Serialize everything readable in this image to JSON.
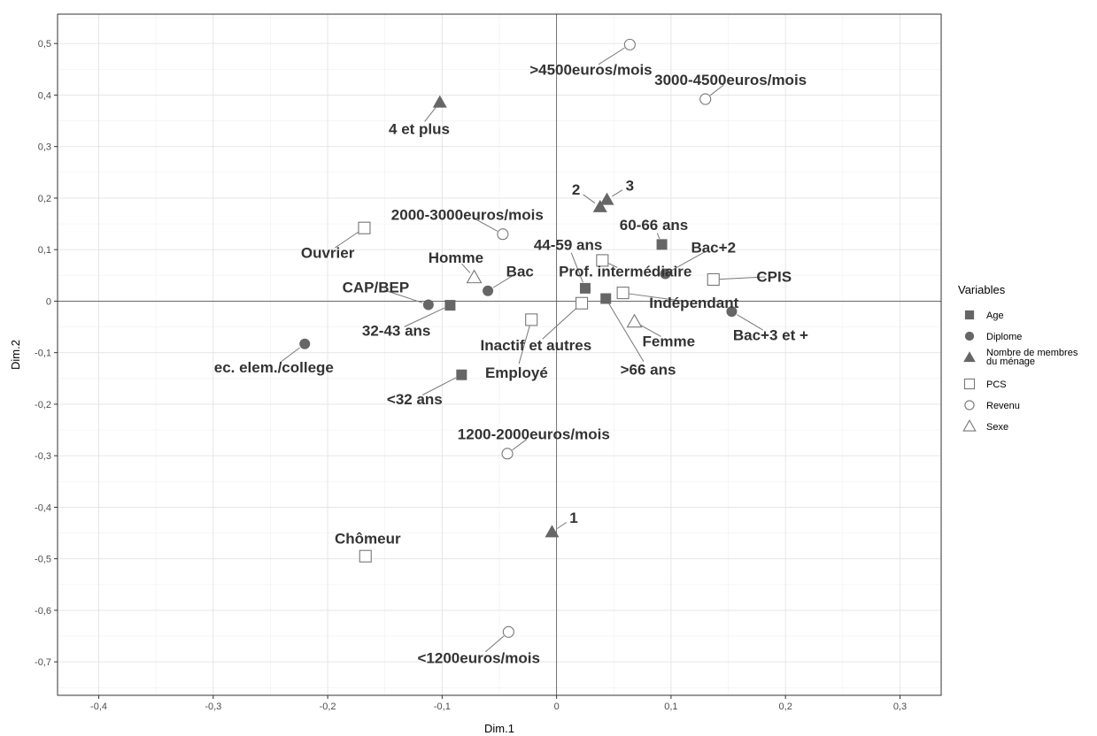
{
  "chart_data": {
    "type": "scatter",
    "xlabel": "Dim.1",
    "ylabel": "Dim.2",
    "xlim": [
      -0.436,
      0.336
    ],
    "ylim": [
      -0.765,
      0.557
    ],
    "x_ticks": [
      -0.4,
      -0.3,
      -0.2,
      -0.1,
      0,
      0.1,
      0.2,
      0.3
    ],
    "y_ticks": [
      -0.7,
      -0.6,
      -0.5,
      -0.4,
      -0.3,
      -0.2,
      -0.1,
      0,
      0.1,
      0.2,
      0.3,
      0.4,
      0.5
    ],
    "x_tick_labels": [
      "-0,4",
      "-0,3",
      "-0,2",
      "-0,1",
      "0",
      "0,1",
      "0,2",
      "0,3"
    ],
    "y_tick_labels": [
      "-0,7",
      "-0,6",
      "-0,5",
      "-0,4",
      "-0,3",
      "-0,2",
      "-0,1",
      "0",
      "0,1",
      "0,2",
      "0,3",
      "0,4",
      "0,5"
    ],
    "grid": true,
    "reference_lines": {
      "x": 0,
      "y": 0
    },
    "legend": {
      "title": "Variables",
      "position": "right",
      "entries": [
        {
          "name": "Age",
          "shape": "square-filled"
        },
        {
          "name": "Diplome",
          "shape": "circle-filled"
        },
        {
          "name": "Nombre de membres du ménage",
          "shape": "triangle-filled",
          "lines": [
            "Nombre de membres",
            "du ménage"
          ]
        },
        {
          "name": "PCS",
          "shape": "square-open"
        },
        {
          "name": "Revenu",
          "shape": "circle-open"
        },
        {
          "name": "Sexe",
          "shape": "triangle-open"
        }
      ]
    },
    "series": [
      {
        "name": "Age",
        "shape": "square-filled",
        "points": [
          {
            "label": "60-66 ans",
            "x": 0.092,
            "y": 0.11,
            "lx": 0.085,
            "ly": 0.148
          },
          {
            "label": "44-59 ans",
            "x": 0.025,
            "y": 0.025,
            "lx": 0.01,
            "ly": 0.11
          },
          {
            "label": ">66 ans",
            "x": 0.043,
            "y": 0.005,
            "lx": 0.08,
            "ly": -0.132
          },
          {
            "label": "32-43 ans",
            "x": -0.093,
            "y": -0.008,
            "lx": -0.14,
            "ly": -0.057
          },
          {
            "label": "<32 ans",
            "x": -0.083,
            "y": -0.143,
            "lx": -0.124,
            "ly": -0.19
          }
        ]
      },
      {
        "name": "Diplome",
        "shape": "circle-filled",
        "points": [
          {
            "label": "Bac+2",
            "x": 0.095,
            "y": 0.053,
            "lx": 0.137,
            "ly": 0.105
          },
          {
            "label": "Bac",
            "x": -0.06,
            "y": 0.02,
            "lx": -0.032,
            "ly": 0.058
          },
          {
            "label": "CAP/BEP",
            "x": -0.112,
            "y": -0.007,
            "lx": -0.158,
            "ly": 0.027
          },
          {
            "label": "Bac+3 et +",
            "x": 0.153,
            "y": -0.02,
            "lx": 0.187,
            "ly": -0.065
          },
          {
            "label": "ec. elem./college",
            "x": -0.22,
            "y": -0.083,
            "lx": -0.247,
            "ly": -0.128
          }
        ]
      },
      {
        "name": "Nombre de membres du ménage",
        "shape": "triangle-filled",
        "points": [
          {
            "label": "4 et plus",
            "x": -0.102,
            "y": 0.386,
            "lx": -0.12,
            "ly": 0.335
          },
          {
            "label": "2",
            "x": 0.038,
            "y": 0.183,
            "lx": 0.017,
            "ly": 0.217
          },
          {
            "label": "3",
            "x": 0.044,
            "y": 0.197,
            "lx": 0.064,
            "ly": 0.225
          },
          {
            "label": "1",
            "x": -0.004,
            "y": -0.448,
            "lx": 0.015,
            "ly": -0.42
          }
        ]
      },
      {
        "name": "PCS",
        "shape": "square-open",
        "points": [
          {
            "label": "Ouvrier",
            "x": -0.168,
            "y": 0.142,
            "lx": -0.2,
            "ly": 0.094
          },
          {
            "label": "Prof. intermédiaire",
            "x": 0.04,
            "y": 0.079,
            "lx": 0.06,
            "ly": 0.058
          },
          {
            "label": "CPIS",
            "x": 0.137,
            "y": 0.042,
            "lx": 0.19,
            "ly": 0.048
          },
          {
            "label": "Indépendant",
            "x": 0.058,
            "y": 0.016,
            "lx": 0.12,
            "ly": -0.003
          },
          {
            "label": "Inactif et autres",
            "x": 0.022,
            "y": -0.004,
            "lx": -0.018,
            "ly": -0.085
          },
          {
            "label": "Employé",
            "x": -0.022,
            "y": -0.036,
            "lx": -0.035,
            "ly": -0.138
          },
          {
            "label": "Chômeur",
            "x": -0.167,
            "y": -0.495,
            "lx": -0.165,
            "ly": -0.46
          }
        ]
      },
      {
        "name": "Revenu",
        "shape": "circle-open",
        "points": [
          {
            "label": ">4500euros/mois",
            "x": 0.064,
            "y": 0.498,
            "lx": 0.03,
            "ly": 0.45
          },
          {
            "label": "3000-4500euros/mois",
            "x": 0.13,
            "y": 0.392,
            "lx": 0.152,
            "ly": 0.43
          },
          {
            "label": "2000-3000euros/mois",
            "x": -0.047,
            "y": 0.13,
            "lx": -0.078,
            "ly": 0.168
          },
          {
            "label": "1200-2000euros/mois",
            "x": -0.043,
            "y": -0.296,
            "lx": -0.02,
            "ly": -0.258
          },
          {
            "label": "<1200euros/mois",
            "x": -0.042,
            "y": -0.642,
            "lx": -0.068,
            "ly": -0.692
          }
        ]
      },
      {
        "name": "Sexe",
        "shape": "triangle-open",
        "points": [
          {
            "label": "Homme",
            "x": -0.072,
            "y": 0.046,
            "lx": -0.088,
            "ly": 0.085
          },
          {
            "label": "Femme",
            "x": 0.068,
            "y": -0.04,
            "lx": 0.098,
            "ly": -0.077
          }
        ]
      }
    ]
  }
}
